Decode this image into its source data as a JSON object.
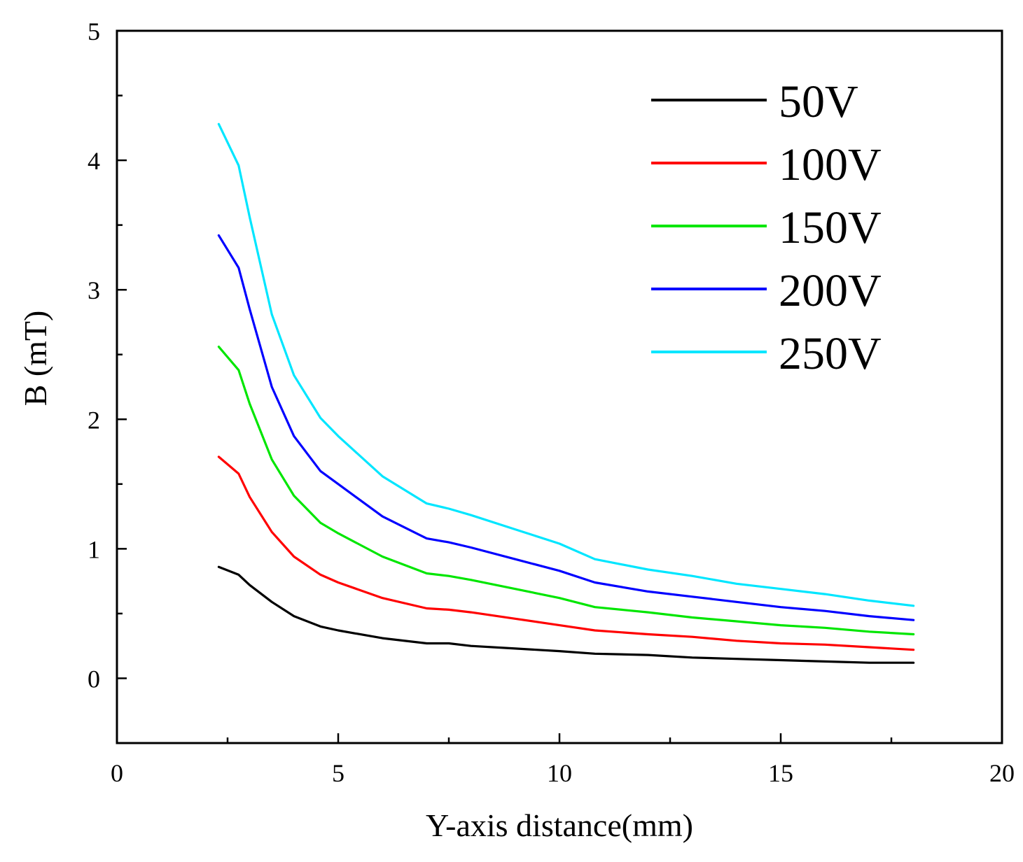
{
  "chart_data": {
    "type": "line",
    "title": "",
    "xlabel": "Y-axis distance(mm)",
    "ylabel": "B (mT)",
    "xlim": [
      0,
      20
    ],
    "ylim": [
      -0.5,
      5
    ],
    "x_ticks": [
      0,
      5,
      10,
      15,
      20
    ],
    "x_minor_ticks": [
      2.5,
      7.5,
      12.5,
      17.5
    ],
    "y_ticks": [
      0,
      1,
      2,
      3,
      4,
      5
    ],
    "y_minor_ticks": [
      0.5,
      1.5,
      2.5,
      3.5,
      4.5
    ],
    "x_tick_labels": [
      "0",
      "5",
      "10",
      "15",
      "20"
    ],
    "y_tick_labels": [
      "0",
      "1",
      "2",
      "3",
      "4",
      "5"
    ],
    "grid": false,
    "legend_position": "top-right",
    "x": [
      2.3,
      2.75,
      3.0,
      3.5,
      4.0,
      4.6,
      5.0,
      6.0,
      7.0,
      7.5,
      8.0,
      9.0,
      10.0,
      10.8,
      12.0,
      13.0,
      14.0,
      15.0,
      16.0,
      17.0,
      18.0
    ],
    "series": [
      {
        "name": "50V",
        "color": "#000000",
        "values": [
          0.86,
          0.8,
          0.72,
          0.59,
          0.48,
          0.4,
          0.37,
          0.31,
          0.27,
          0.27,
          0.25,
          0.23,
          0.21,
          0.19,
          0.18,
          0.16,
          0.15,
          0.14,
          0.13,
          0.12,
          0.12
        ]
      },
      {
        "name": "100V",
        "color": "#ff0000",
        "values": [
          1.71,
          1.58,
          1.4,
          1.13,
          0.94,
          0.8,
          0.74,
          0.62,
          0.54,
          0.53,
          0.51,
          0.46,
          0.41,
          0.37,
          0.34,
          0.32,
          0.29,
          0.27,
          0.26,
          0.24,
          0.22
        ]
      },
      {
        "name": "150V",
        "color": "#00e600",
        "values": [
          2.56,
          2.38,
          2.12,
          1.69,
          1.41,
          1.2,
          1.12,
          0.94,
          0.81,
          0.79,
          0.76,
          0.69,
          0.62,
          0.55,
          0.51,
          0.47,
          0.44,
          0.41,
          0.39,
          0.36,
          0.34
        ]
      },
      {
        "name": "200V",
        "color": "#0000ff",
        "values": [
          3.42,
          3.17,
          2.85,
          2.25,
          1.87,
          1.6,
          1.5,
          1.25,
          1.08,
          1.05,
          1.01,
          0.92,
          0.83,
          0.74,
          0.67,
          0.63,
          0.59,
          0.55,
          0.52,
          0.48,
          0.45
        ]
      },
      {
        "name": "250V",
        "color": "#00e6ff",
        "values": [
          4.28,
          3.96,
          3.56,
          2.81,
          2.34,
          2.01,
          1.87,
          1.56,
          1.35,
          1.31,
          1.26,
          1.15,
          1.04,
          0.92,
          0.84,
          0.79,
          0.73,
          0.69,
          0.65,
          0.6,
          0.56
        ]
      }
    ]
  }
}
